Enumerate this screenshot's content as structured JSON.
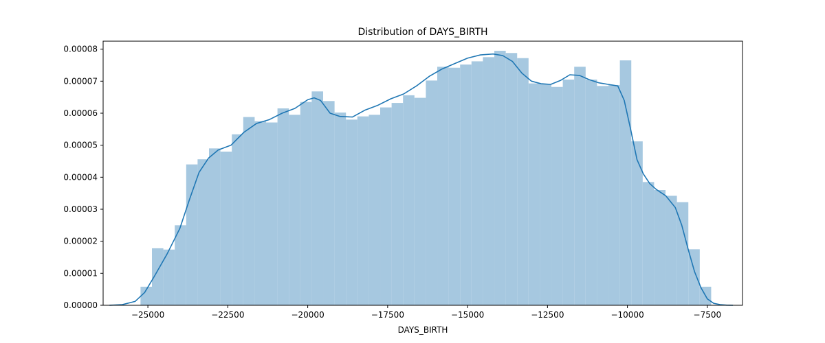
{
  "chart_data": {
    "type": "bar",
    "title": "Distribution of DAYS_BIRTH",
    "xlabel": "DAYS_BIRTH",
    "ylabel": "",
    "xlim": [
      -26400,
      -6400
    ],
    "ylim": [
      0,
      8.25e-05
    ],
    "x_ticks": [
      -25000,
      -22500,
      -20000,
      -17500,
      -15000,
      -12500,
      -10000,
      -7500
    ],
    "x_tick_labels": [
      "−25000",
      "−22500",
      "−20000",
      "−17500",
      "−15000",
      "−12500",
      "−10000",
      "−7500"
    ],
    "y_ticks": [
      0,
      1e-05,
      2e-05,
      3e-05,
      4e-05,
      5e-05,
      6e-05,
      7e-05,
      8e-05
    ],
    "y_tick_labels": [
      "0.00000",
      "0.00001",
      "0.00002",
      "0.00003",
      "0.00004",
      "0.00005",
      "0.00006",
      "0.00007",
      "0.00008"
    ],
    "histogram": {
      "bin_start": -25230,
      "bin_width": 357,
      "color": "#a6c8e0",
      "values": [
        5.8e-06,
        1.78e-05,
        1.74e-05,
        2.5e-05,
        4.4e-05,
        4.56e-05,
        4.9e-05,
        4.8e-05,
        5.34e-05,
        5.88e-05,
        5.75e-05,
        5.71e-05,
        6.15e-05,
        5.95e-05,
        6.35e-05,
        6.68e-05,
        6.38e-05,
        6.02e-05,
        5.8e-05,
        5.9e-05,
        5.95e-05,
        6.18e-05,
        6.32e-05,
        6.56e-05,
        6.48e-05,
        7.02e-05,
        7.45e-05,
        7.42e-05,
        7.52e-05,
        7.62e-05,
        7.75e-05,
        7.95e-05,
        7.88e-05,
        7.72e-05,
        6.93e-05,
        6.9e-05,
        6.82e-05,
        7.05e-05,
        7.45e-05,
        7.05e-05,
        6.85e-05,
        6.88e-05,
        7.65e-05,
        5.12e-05,
        3.85e-05,
        3.6e-05,
        3.42e-05,
        3.22e-05,
        1.75e-05,
        5.8e-06
      ]
    },
    "kde": {
      "color": "#1f77b4",
      "x": [
        -26200,
        -25800,
        -25400,
        -25100,
        -24800,
        -24400,
        -24000,
        -23700,
        -23400,
        -23100,
        -22800,
        -22400,
        -22000,
        -21600,
        -21200,
        -20800,
        -20400,
        -20000,
        -19800,
        -19600,
        -19300,
        -19000,
        -18600,
        -18200,
        -17800,
        -17400,
        -17000,
        -16600,
        -16200,
        -15800,
        -15400,
        -15000,
        -14600,
        -14200,
        -13900,
        -13600,
        -13300,
        -13000,
        -12700,
        -12400,
        -12100,
        -11800,
        -11500,
        -11200,
        -10900,
        -10600,
        -10300,
        -10100,
        -9900,
        -9700,
        -9500,
        -9300,
        -9100,
        -8800,
        -8500,
        -8300,
        -8100,
        -7900,
        -7700,
        -7500,
        -7300,
        -7100,
        -6900,
        -6700
      ],
      "y": [
        0,
        2e-07,
        1.2e-06,
        4e-06,
        9e-06,
        1.6e-05,
        2.4e-05,
        3.3e-05,
        4.15e-05,
        4.6e-05,
        4.85e-05,
        5e-05,
        5.4e-05,
        5.68e-05,
        5.8e-05,
        6e-05,
        6.15e-05,
        6.42e-05,
        6.48e-05,
        6.4e-05,
        6e-05,
        5.9e-05,
        5.88e-05,
        6.1e-05,
        6.25e-05,
        6.45e-05,
        6.6e-05,
        6.85e-05,
        7.15e-05,
        7.38e-05,
        7.55e-05,
        7.72e-05,
        7.82e-05,
        7.85e-05,
        7.8e-05,
        7.62e-05,
        7.25e-05,
        7e-05,
        6.92e-05,
        6.9e-05,
        7.02e-05,
        7.2e-05,
        7.18e-05,
        7.05e-05,
        6.95e-05,
        6.9e-05,
        6.85e-05,
        6.4e-05,
        5.5e-05,
        4.55e-05,
        4.1e-05,
        3.8e-05,
        3.62e-05,
        3.42e-05,
        3.05e-05,
        2.5e-05,
        1.75e-05,
        1.05e-05,
        5.5e-06,
        2e-06,
        6e-07,
        2e-07,
        5e-08,
        0
      ]
    }
  }
}
